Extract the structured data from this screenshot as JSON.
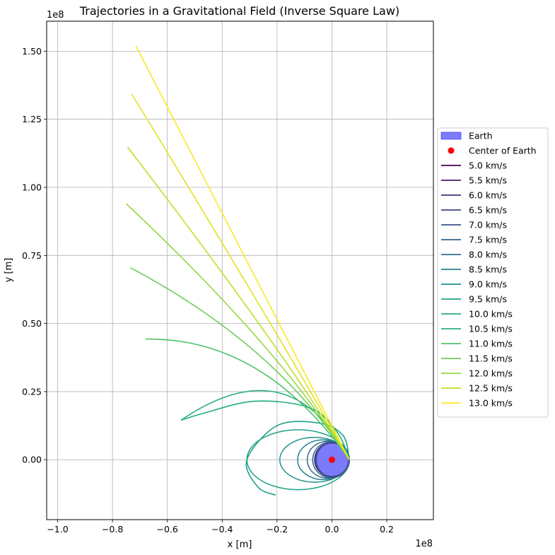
{
  "chart_data": {
    "type": "line",
    "title": "Trajectories in a Gravitational Field (Inverse Square Law)",
    "xlabel": "x [m]",
    "ylabel": "y [m]",
    "x_offset_label": "1e8",
    "y_offset_label": "1e8",
    "xlim": [
      -1.04,
      0.37
    ],
    "ylim": [
      -0.22,
      1.61
    ],
    "x_ticks": [
      -1.0,
      -0.8,
      -0.6,
      -0.4,
      -0.2,
      0.0,
      0.2
    ],
    "x_tick_labels": [
      "−1.0",
      "−0.8",
      "−0.6",
      "−0.4",
      "−0.2",
      "0.0",
      "0.2"
    ],
    "y_ticks": [
      0.0,
      0.25,
      0.5,
      0.75,
      1.0,
      1.25,
      1.5
    ],
    "y_tick_labels": [
      "0.00",
      "0.25",
      "0.50",
      "0.75",
      "1.00",
      "1.25",
      "1.50"
    ],
    "grid": true,
    "legend_position": "outside-right",
    "earth": {
      "label": "Earth",
      "center": [
        0.0,
        0.0
      ],
      "radius": 0.0637,
      "fill_color": "#7b7bfc",
      "edge_color": "#4d4dff"
    },
    "center_marker": {
      "label": "Center of Earth",
      "x": 0.0,
      "y": 0.0,
      "color": "#ff0000"
    },
    "launch_point": [
      0.0637,
      0.0
    ],
    "escape_series": [
      {
        "name": "10.5 km/s",
        "color": "#2db27d",
        "end": [
          -0.55,
          0.145
        ],
        "ctrl": [
          -0.15,
          0.42
        ]
      },
      {
        "name": "11.0 km/s",
        "color": "#4ec36b",
        "end": [
          -0.68,
          0.443
        ],
        "ctrl": [
          -0.25,
          0.45
        ]
      },
      {
        "name": "11.5 km/s",
        "color": "#6ccd5a",
        "end": [
          -0.735,
          0.705
        ],
        "ctrl": [
          -0.2,
          0.42
        ]
      },
      {
        "name": "12.0 km/s",
        "color": "#95d840",
        "end": [
          -0.75,
          0.94
        ],
        "ctrl": [
          -0.18,
          0.4
        ]
      },
      {
        "name": "12.5 km/s",
        "color": "#bddf26",
        "end": [
          -0.745,
          1.148
        ],
        "ctrl": [
          -0.16,
          0.38
        ]
      },
      {
        "name": "13.0 km/s",
        "color": "#dfe318",
        "end": [
          -0.73,
          1.343
        ],
        "ctrl": [
          -0.14,
          0.37
        ]
      },
      {
        "name": "13.0 km/s",
        "color": "#fde725",
        "end": [
          -0.715,
          1.52
        ],
        "ctrl": [
          -0.12,
          0.36
        ]
      }
    ],
    "orbit_series": [
      {
        "name": "9.5 km/s",
        "color": "#1fa187",
        "x_min": -0.31,
        "x_max": 0.0637,
        "b": 0.11
      },
      {
        "name": "9.0 km/s",
        "color": "#21918c",
        "x_min": -0.19,
        "x_max": 0.0637,
        "b": 0.082
      },
      {
        "name": "8.5 km/s",
        "color": "#277f8e",
        "x_min": -0.125,
        "x_max": 0.0637,
        "b": 0.073
      },
      {
        "name": "8.0 km/s",
        "color": "#2c728e",
        "x_min": -0.09,
        "x_max": 0.0637,
        "b": 0.068
      },
      {
        "name": "7.5 km/s",
        "color": "#33638d",
        "x_min": -0.07,
        "x_max": 0.0637,
        "b": 0.066
      },
      {
        "name": "7.0 km/s",
        "color": "#3b528b",
        "x_min": -0.057,
        "x_max": 0.0637,
        "b": 0.064
      }
    ],
    "arc_series": {
      "name": "10.0 km/s",
      "color": "#25ab82",
      "points": [
        [
          0.0637,
          0.0
        ],
        [
          0.02,
          0.1
        ],
        [
          -0.08,
          0.19
        ],
        [
          -0.28,
          0.215
        ],
        [
          -0.47,
          0.17
        ],
        [
          -0.55,
          0.145
        ]
      ]
    },
    "open_orbit": {
      "name": "9.5 km/s",
      "color": "#1fa187",
      "points": [
        [
          0.0637,
          0.0
        ],
        [
          0.04,
          0.09
        ],
        [
          -0.05,
          0.135
        ],
        [
          -0.2,
          0.125
        ],
        [
          -0.31,
          0.0
        ],
        [
          -0.27,
          -0.1
        ],
        [
          -0.205,
          -0.13
        ]
      ]
    },
    "legend_entries": [
      {
        "label": "Earth",
        "kind": "patch",
        "color": "#7b7bfc"
      },
      {
        "label": "Center of Earth",
        "kind": "dot",
        "color": "#ff0000"
      },
      {
        "label": "5.0 km/s",
        "kind": "line",
        "color": "#440154"
      },
      {
        "label": "5.5 km/s",
        "kind": "line",
        "color": "#481a6c"
      },
      {
        "label": "6.0 km/s",
        "kind": "line",
        "color": "#472f7d"
      },
      {
        "label": "6.5 km/s",
        "kind": "line",
        "color": "#414487"
      },
      {
        "label": "7.0 km/s",
        "kind": "line",
        "color": "#3b528b"
      },
      {
        "label": "7.5 km/s",
        "kind": "line",
        "color": "#33638d"
      },
      {
        "label": "8.0 km/s",
        "kind": "line",
        "color": "#2c728e"
      },
      {
        "label": "8.5 km/s",
        "kind": "line",
        "color": "#277f8e"
      },
      {
        "label": "9.0 km/s",
        "kind": "line",
        "color": "#21918c"
      },
      {
        "label": "9.5 km/s",
        "kind": "line",
        "color": "#1fa187"
      },
      {
        "label": "10.0 km/s",
        "kind": "line",
        "color": "#25ab82"
      },
      {
        "label": "10.5 km/s",
        "kind": "line",
        "color": "#2db27d"
      },
      {
        "label": "11.0 km/s",
        "kind": "line",
        "color": "#4ec36b"
      },
      {
        "label": "11.5 km/s",
        "kind": "line",
        "color": "#6ccd5a"
      },
      {
        "label": "12.0 km/s",
        "kind": "line",
        "color": "#95d840"
      },
      {
        "label": "12.5 km/s",
        "kind": "line",
        "color": "#bddf26"
      },
      {
        "label": "13.0 km/s",
        "kind": "line",
        "color": "#fde725"
      }
    ]
  }
}
